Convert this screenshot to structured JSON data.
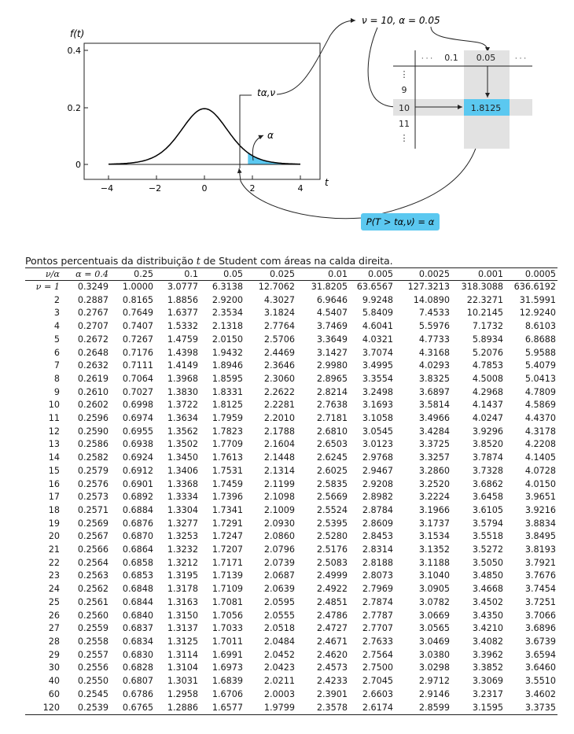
{
  "figure": {
    "y_axis_label": "f(t)",
    "y_ticks": [
      "0.4",
      "0.2",
      "0"
    ],
    "x_ticks": [
      "−4",
      "−2",
      "0",
      "2",
      "4"
    ],
    "x_axis_label": "t",
    "t_label": "tα,ν",
    "alpha_label": "α",
    "curve_color": "#000000",
    "shade_color": "#5bc8f0",
    "highlight_gray": "#e2e2e2",
    "highlight_blue": "#5bc8f0",
    "params_label": "ν = 10, α = 0.05",
    "mini_table": {
      "col_headers": [
        "· · ·",
        "0.1",
        "0.05",
        "· · ·"
      ],
      "rows": [
        "⋮",
        "9",
        "10",
        "11",
        "⋮"
      ],
      "value": "1.8125"
    },
    "prob_label": "P(T > tα,ν) = α"
  },
  "caption": {
    "before": "Pontos percentuais da distribuição ",
    "var": "t",
    "after": " de Student com áreas na calda direita."
  },
  "table": {
    "corner": "ν/α",
    "alpha_headers": [
      "α = 0.4",
      "0.25",
      "0.1",
      "0.05",
      "0.025",
      "0.01",
      "0.005",
      "0.0025",
      "0.001",
      "0.0005"
    ],
    "rows": [
      {
        "nu": "ν = 1",
        "v": [
          "0.3249",
          "1.0000",
          "3.0777",
          "6.3138",
          "12.7062",
          "31.8205",
          "63.6567",
          "127.3213",
          "318.3088",
          "636.6192"
        ]
      },
      {
        "nu": "2",
        "v": [
          "0.2887",
          "0.8165",
          "1.8856",
          "2.9200",
          "4.3027",
          "6.9646",
          "9.9248",
          "14.0890",
          "22.3271",
          "31.5991"
        ]
      },
      {
        "nu": "3",
        "v": [
          "0.2767",
          "0.7649",
          "1.6377",
          "2.3534",
          "3.1824",
          "4.5407",
          "5.8409",
          "7.4533",
          "10.2145",
          "12.9240"
        ]
      },
      {
        "nu": "4",
        "v": [
          "0.2707",
          "0.7407",
          "1.5332",
          "2.1318",
          "2.7764",
          "3.7469",
          "4.6041",
          "5.5976",
          "7.1732",
          "8.6103"
        ]
      },
      {
        "nu": "5",
        "v": [
          "0.2672",
          "0.7267",
          "1.4759",
          "2.0150",
          "2.5706",
          "3.3649",
          "4.0321",
          "4.7733",
          "5.8934",
          "6.8688"
        ]
      },
      {
        "nu": "6",
        "v": [
          "0.2648",
          "0.7176",
          "1.4398",
          "1.9432",
          "2.4469",
          "3.1427",
          "3.7074",
          "4.3168",
          "5.2076",
          "5.9588"
        ]
      },
      {
        "nu": "7",
        "v": [
          "0.2632",
          "0.7111",
          "1.4149",
          "1.8946",
          "2.3646",
          "2.9980",
          "3.4995",
          "4.0293",
          "4.7853",
          "5.4079"
        ]
      },
      {
        "nu": "8",
        "v": [
          "0.2619",
          "0.7064",
          "1.3968",
          "1.8595",
          "2.3060",
          "2.8965",
          "3.3554",
          "3.8325",
          "4.5008",
          "5.0413"
        ]
      },
      {
        "nu": "9",
        "v": [
          "0.2610",
          "0.7027",
          "1.3830",
          "1.8331",
          "2.2622",
          "2.8214",
          "3.2498",
          "3.6897",
          "4.2968",
          "4.7809"
        ]
      },
      {
        "nu": "10",
        "v": [
          "0.2602",
          "0.6998",
          "1.3722",
          "1.8125",
          "2.2281",
          "2.7638",
          "3.1693",
          "3.5814",
          "4.1437",
          "4.5869"
        ]
      },
      {
        "nu": "11",
        "v": [
          "0.2596",
          "0.6974",
          "1.3634",
          "1.7959",
          "2.2010",
          "2.7181",
          "3.1058",
          "3.4966",
          "4.0247",
          "4.4370"
        ]
      },
      {
        "nu": "12",
        "v": [
          "0.2590",
          "0.6955",
          "1.3562",
          "1.7823",
          "2.1788",
          "2.6810",
          "3.0545",
          "3.4284",
          "3.9296",
          "4.3178"
        ]
      },
      {
        "nu": "13",
        "v": [
          "0.2586",
          "0.6938",
          "1.3502",
          "1.7709",
          "2.1604",
          "2.6503",
          "3.0123",
          "3.3725",
          "3.8520",
          "4.2208"
        ]
      },
      {
        "nu": "14",
        "v": [
          "0.2582",
          "0.6924",
          "1.3450",
          "1.7613",
          "2.1448",
          "2.6245",
          "2.9768",
          "3.3257",
          "3.7874",
          "4.1405"
        ]
      },
      {
        "nu": "15",
        "v": [
          "0.2579",
          "0.6912",
          "1.3406",
          "1.7531",
          "2.1314",
          "2.6025",
          "2.9467",
          "3.2860",
          "3.7328",
          "4.0728"
        ]
      },
      {
        "nu": "16",
        "v": [
          "0.2576",
          "0.6901",
          "1.3368",
          "1.7459",
          "2.1199",
          "2.5835",
          "2.9208",
          "3.2520",
          "3.6862",
          "4.0150"
        ]
      },
      {
        "nu": "17",
        "v": [
          "0.2573",
          "0.6892",
          "1.3334",
          "1.7396",
          "2.1098",
          "2.5669",
          "2.8982",
          "3.2224",
          "3.6458",
          "3.9651"
        ]
      },
      {
        "nu": "18",
        "v": [
          "0.2571",
          "0.6884",
          "1.3304",
          "1.7341",
          "2.1009",
          "2.5524",
          "2.8784",
          "3.1966",
          "3.6105",
          "3.9216"
        ]
      },
      {
        "nu": "19",
        "v": [
          "0.2569",
          "0.6876",
          "1.3277",
          "1.7291",
          "2.0930",
          "2.5395",
          "2.8609",
          "3.1737",
          "3.5794",
          "3.8834"
        ]
      },
      {
        "nu": "20",
        "v": [
          "0.2567",
          "0.6870",
          "1.3253",
          "1.7247",
          "2.0860",
          "2.5280",
          "2.8453",
          "3.1534",
          "3.5518",
          "3.8495"
        ]
      },
      {
        "nu": "21",
        "v": [
          "0.2566",
          "0.6864",
          "1.3232",
          "1.7207",
          "2.0796",
          "2.5176",
          "2.8314",
          "3.1352",
          "3.5272",
          "3.8193"
        ]
      },
      {
        "nu": "22",
        "v": [
          "0.2564",
          "0.6858",
          "1.3212",
          "1.7171",
          "2.0739",
          "2.5083",
          "2.8188",
          "3.1188",
          "3.5050",
          "3.7921"
        ]
      },
      {
        "nu": "23",
        "v": [
          "0.2563",
          "0.6853",
          "1.3195",
          "1.7139",
          "2.0687",
          "2.4999",
          "2.8073",
          "3.1040",
          "3.4850",
          "3.7676"
        ]
      },
      {
        "nu": "24",
        "v": [
          "0.2562",
          "0.6848",
          "1.3178",
          "1.7109",
          "2.0639",
          "2.4922",
          "2.7969",
          "3.0905",
          "3.4668",
          "3.7454"
        ]
      },
      {
        "nu": "25",
        "v": [
          "0.2561",
          "0.6844",
          "1.3163",
          "1.7081",
          "2.0595",
          "2.4851",
          "2.7874",
          "3.0782",
          "3.4502",
          "3.7251"
        ]
      },
      {
        "nu": "26",
        "v": [
          "0.2560",
          "0.6840",
          "1.3150",
          "1.7056",
          "2.0555",
          "2.4786",
          "2.7787",
          "3.0669",
          "3.4350",
          "3.7066"
        ]
      },
      {
        "nu": "27",
        "v": [
          "0.2559",
          "0.6837",
          "1.3137",
          "1.7033",
          "2.0518",
          "2.4727",
          "2.7707",
          "3.0565",
          "3.4210",
          "3.6896"
        ]
      },
      {
        "nu": "28",
        "v": [
          "0.2558",
          "0.6834",
          "1.3125",
          "1.7011",
          "2.0484",
          "2.4671",
          "2.7633",
          "3.0469",
          "3.4082",
          "3.6739"
        ]
      },
      {
        "nu": "29",
        "v": [
          "0.2557",
          "0.6830",
          "1.3114",
          "1.6991",
          "2.0452",
          "2.4620",
          "2.7564",
          "3.0380",
          "3.3962",
          "3.6594"
        ]
      },
      {
        "nu": "30",
        "v": [
          "0.2556",
          "0.6828",
          "1.3104",
          "1.6973",
          "2.0423",
          "2.4573",
          "2.7500",
          "3.0298",
          "3.3852",
          "3.6460"
        ]
      },
      {
        "nu": "40",
        "v": [
          "0.2550",
          "0.6807",
          "1.3031",
          "1.6839",
          "2.0211",
          "2.4233",
          "2.7045",
          "2.9712",
          "3.3069",
          "3.5510"
        ]
      },
      {
        "nu": "60",
        "v": [
          "0.2545",
          "0.6786",
          "1.2958",
          "1.6706",
          "2.0003",
          "2.3901",
          "2.6603",
          "2.9146",
          "3.2317",
          "3.4602"
        ]
      },
      {
        "nu": "120",
        "v": [
          "0.2539",
          "0.6765",
          "1.2886",
          "1.6577",
          "1.9799",
          "2.3578",
          "2.6174",
          "2.8599",
          "3.1595",
          "3.3735"
        ]
      }
    ]
  }
}
